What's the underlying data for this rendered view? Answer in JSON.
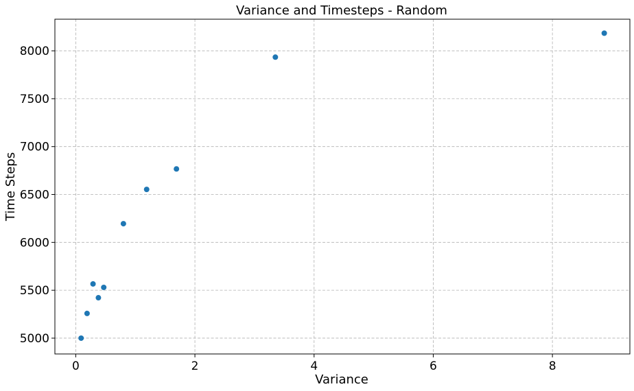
{
  "chart_data": {
    "type": "scatter",
    "title": "Variance and Timesteps - Random",
    "xlabel": "Variance",
    "ylabel": "Time Steps",
    "xlim": [
      -0.35,
      9.3
    ],
    "ylim": [
      4835,
      8330
    ],
    "xticks": [
      0,
      2,
      4,
      6,
      8
    ],
    "yticks": [
      5000,
      5500,
      6000,
      6500,
      7000,
      7500,
      8000
    ],
    "grid": true,
    "point_color": "#1f77b4",
    "points": [
      {
        "x": 0.09,
        "y": 5000
      },
      {
        "x": 0.19,
        "y": 5258
      },
      {
        "x": 0.29,
        "y": 5566
      },
      {
        "x": 0.38,
        "y": 5422
      },
      {
        "x": 0.47,
        "y": 5530
      },
      {
        "x": 0.8,
        "y": 6195
      },
      {
        "x": 1.19,
        "y": 6553
      },
      {
        "x": 1.69,
        "y": 6767
      },
      {
        "x": 3.35,
        "y": 7934
      },
      {
        "x": 8.87,
        "y": 8184
      }
    ]
  }
}
